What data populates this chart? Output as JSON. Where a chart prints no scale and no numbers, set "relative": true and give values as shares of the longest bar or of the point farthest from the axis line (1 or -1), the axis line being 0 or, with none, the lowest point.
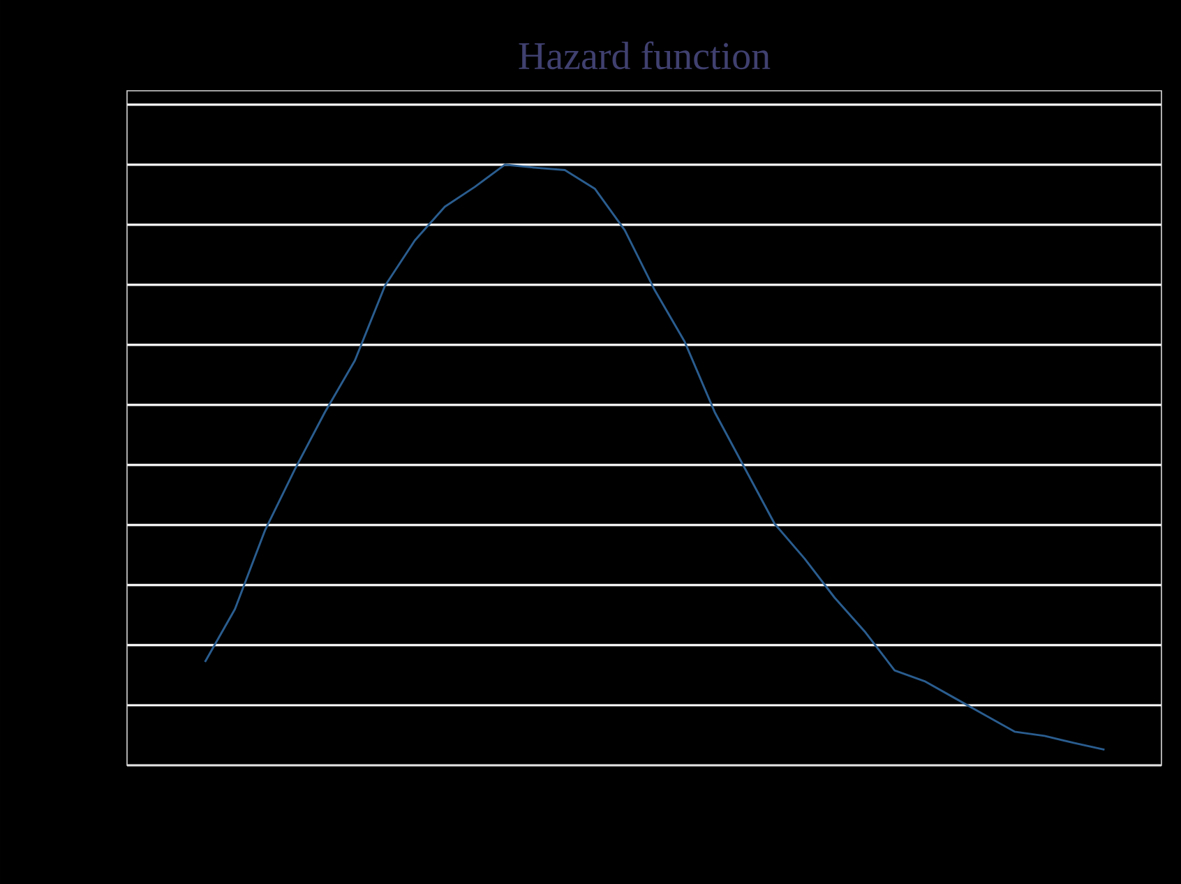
{
  "chart_data": {
    "type": "line",
    "title": "Hazard function",
    "relative": true,
    "grid": "y",
    "categories": [
      null,
      null,
      null,
      null,
      null,
      null,
      null,
      null,
      null,
      null,
      null,
      null,
      null,
      null,
      null,
      null,
      null,
      null,
      null,
      null,
      null,
      null,
      null,
      null,
      null,
      null,
      null,
      null,
      null,
      null,
      null
    ],
    "series": [
      {
        "color": "#2a5d8f",
        "values": [
          0.172,
          0.26,
          0.391,
          0.493,
          0.588,
          0.674,
          0.798,
          0.874,
          0.93,
          0.963,
          1.0,
          0.995,
          0.991,
          0.96,
          0.891,
          0.791,
          0.705,
          0.588,
          0.495,
          0.402,
          0.344,
          0.279,
          0.223,
          0.158,
          0.14,
          0.112,
          0.084,
          0.056,
          0.049,
          0.037,
          0.026
        ]
      }
    ]
  }
}
